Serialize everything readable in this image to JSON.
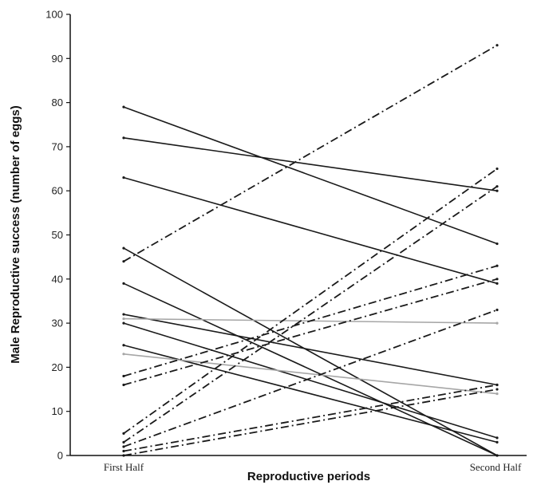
{
  "chart_data": {
    "type": "line",
    "xlabel": "Reproductive periods",
    "ylabel": "Male Reproductive success (number of eggs)",
    "categories": [
      "First Half",
      "Second Half"
    ],
    "ylim": [
      0,
      100
    ],
    "yticks": [
      0,
      10,
      20,
      30,
      40,
      50,
      60,
      70,
      80,
      90,
      100
    ],
    "grid": false,
    "legend": "none",
    "series": [
      {
        "values": [
          79,
          48
        ],
        "style": "solid",
        "color": "#1a1a1a"
      },
      {
        "values": [
          72,
          60
        ],
        "style": "solid",
        "color": "#1a1a1a"
      },
      {
        "values": [
          63,
          39
        ],
        "style": "solid",
        "color": "#1a1a1a"
      },
      {
        "values": [
          47,
          0
        ],
        "style": "solid",
        "color": "#1a1a1a"
      },
      {
        "values": [
          39,
          0
        ],
        "style": "solid",
        "color": "#1a1a1a"
      },
      {
        "values": [
          32,
          16
        ],
        "style": "solid",
        "color": "#1a1a1a"
      },
      {
        "values": [
          31,
          30
        ],
        "style": "solid",
        "color": "#a6a6a6"
      },
      {
        "values": [
          30,
          4
        ],
        "style": "solid",
        "color": "#1a1a1a"
      },
      {
        "values": [
          25,
          3
        ],
        "style": "solid",
        "color": "#1a1a1a"
      },
      {
        "values": [
          23,
          14
        ],
        "style": "solid",
        "color": "#a6a6a6"
      },
      {
        "values": [
          44,
          93
        ],
        "style": "dashdot",
        "color": "#1a1a1a"
      },
      {
        "values": [
          18,
          43
        ],
        "style": "dashdot",
        "color": "#1a1a1a"
      },
      {
        "values": [
          16,
          40
        ],
        "style": "dashdot",
        "color": "#1a1a1a"
      },
      {
        "values": [
          5,
          65
        ],
        "style": "dashdot",
        "color": "#1a1a1a"
      },
      {
        "values": [
          3,
          61
        ],
        "style": "dashdot",
        "color": "#1a1a1a"
      },
      {
        "values": [
          2,
          33
        ],
        "style": "dashdot",
        "color": "#1a1a1a"
      },
      {
        "values": [
          1,
          16
        ],
        "style": "dashdot",
        "color": "#1a1a1a"
      },
      {
        "values": [
          0,
          15
        ],
        "style": "dashdot",
        "color": "#1a1a1a"
      }
    ]
  }
}
